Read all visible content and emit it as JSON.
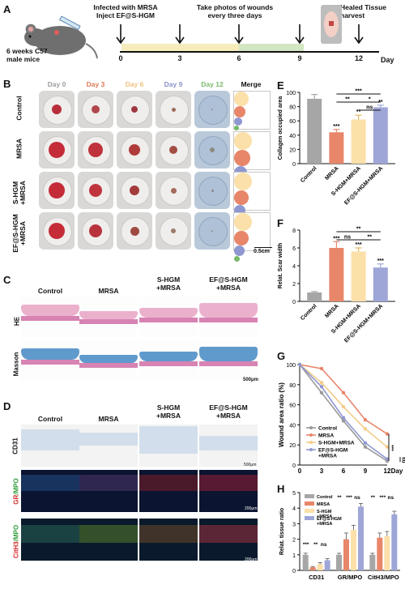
{
  "panels": {
    "A": "A",
    "B": "B",
    "C": "C",
    "D": "D",
    "E": "E",
    "F": "F",
    "G": "G",
    "H": "H"
  },
  "timeline": {
    "mice": "6 weeks C57\nmale mice",
    "event_infect": "Infected with MRSA\nInject EF@S-HGM",
    "event_photo": "Take photos of wounds\nevery three days",
    "event_harvest": "Healed Tissue\nharvest",
    "ticks": [
      "0",
      "3",
      "6",
      "9",
      "12"
    ],
    "axis_unit": "Day"
  },
  "panel_b": {
    "days": [
      "Day 0",
      "Day 3",
      "Day 6",
      "Day 9",
      "Day 12",
      "Merge"
    ],
    "day_colors": [
      "#9e9e9e",
      "#e07b55",
      "#f0c27c",
      "#8a93c9",
      "#79b96a",
      "#111111"
    ],
    "groups": [
      "Control",
      "MRSA",
      "S-HGM\n+MRSA",
      "EF@S-HGM\n+MRSA"
    ],
    "scale": "0.5cm"
  },
  "panel_c": {
    "columns": [
      "Control",
      "MRSA",
      "S-HGM\n+MRSA",
      "EF@S-HGM\n+MRSA"
    ],
    "rows": [
      "HE",
      "Masson"
    ],
    "scale": "500μm"
  },
  "panel_d": {
    "columns": [
      "Control",
      "MRSA",
      "S-HGM\n+MRSA",
      "EF@S-HGM\n+MRSA"
    ],
    "row1": "CD31",
    "row2_a": "GR",
    "row2_b": "/MPO",
    "row3_a": "CitH3",
    "row3_b": "/MPO",
    "scale1": "500μm",
    "scale2": "200μm"
  },
  "chart_data": [
    {
      "id": "E",
      "type": "bar",
      "ylabel": "Collagen occupied area",
      "categories": [
        "Control",
        "MRSA",
        "S-HGM+MRSA",
        "EF@S-HGM+MRSA"
      ],
      "values": [
        91,
        44,
        62,
        79
      ],
      "errors": [
        6,
        4,
        6,
        3
      ],
      "colors": [
        "#a6a6a6",
        "#e8866a",
        "#fbe0a9",
        "#9ea6d8"
      ],
      "ylim": [
        0,
        100
      ],
      "yticks": [
        "0",
        "20",
        "40",
        "60",
        "80",
        "100"
      ],
      "labels": [
        "",
        "***",
        "**",
        "**"
      ],
      "brackets": [
        {
          "from": 1,
          "to": 3,
          "level": 0,
          "text": "***"
        },
        {
          "from": 1,
          "to": 2,
          "level": 1,
          "text": "**"
        },
        {
          "from": 2,
          "to": 3,
          "level": 1,
          "text": "*"
        },
        {
          "from": 2,
          "to": 3,
          "level": 2,
          "text": "ns"
        }
      ]
    },
    {
      "id": "F",
      "type": "bar",
      "ylabel": "Relat. Scar width",
      "categories": [
        "Control",
        "MRSA",
        "S-HGM+MRSA",
        "EF@S-HGM+MRSA"
      ],
      "values": [
        1.0,
        6.0,
        5.6,
        3.8
      ],
      "errors": [
        0.1,
        0.7,
        0.4,
        0.4
      ],
      "colors": [
        "#a6a6a6",
        "#e8866a",
        "#fbe0a9",
        "#9ea6d8"
      ],
      "ylim": [
        0,
        8
      ],
      "yticks": [
        "0",
        "2",
        "4",
        "6",
        "8"
      ],
      "labels": [
        "",
        "***",
        "***",
        "***"
      ],
      "brackets": [
        {
          "from": 1,
          "to": 3,
          "level": 0,
          "text": "**"
        },
        {
          "from": 1,
          "to": 2,
          "level": 1,
          "text": "ns"
        },
        {
          "from": 2,
          "to": 3,
          "level": 1,
          "text": "**"
        }
      ]
    },
    {
      "id": "G",
      "type": "line",
      "ylabel": "Wound area ratio (%)",
      "xlabel": "Day",
      "x": [
        0,
        3,
        6,
        9,
        12
      ],
      "ylim": [
        0,
        100
      ],
      "yticks": [
        "0",
        "20",
        "40",
        "60",
        "80",
        "100"
      ],
      "xticks": [
        "0",
        "3",
        "6",
        "9",
        "12"
      ],
      "series": [
        {
          "name": "Control",
          "color": "#9a9a9a",
          "values": [
            100,
            72,
            44,
            18,
            4
          ]
        },
        {
          "name": "MRSA",
          "color": "#e8866a",
          "values": [
            100,
            96,
            72,
            45,
            31
          ]
        },
        {
          "name": "S-HGM+MRSA",
          "color": "#f3cc88",
          "values": [
            100,
            82,
            58,
            36,
            18
          ]
        },
        {
          "name": "EF@S-HGM\n+MRSA",
          "color": "#8f97d0",
          "values": [
            100,
            78,
            47,
            22,
            6
          ]
        }
      ],
      "sig": [
        "***",
        "ns"
      ]
    },
    {
      "id": "H",
      "type": "bar",
      "ylabel": "Relat. tissue ratio",
      "categories": [
        "CD31",
        "GR/MPO",
        "CitH3/MPO"
      ],
      "ylim": [
        0,
        5
      ],
      "yticks": [
        "0",
        "1",
        "2",
        "3",
        "4",
        "5"
      ],
      "series": [
        {
          "name": "Control",
          "color": "#a6a6a6",
          "values": [
            1.0,
            1.0,
            1.0
          ],
          "errors": [
            0.1,
            0.1,
            0.1
          ]
        },
        {
          "name": "MRSA",
          "color": "#e8866a",
          "values": [
            0.2,
            2.0,
            2.1
          ],
          "errors": [
            0.05,
            0.4,
            0.3
          ]
        },
        {
          "name": "S-HGM\n+MRSA",
          "color": "#fbe0a9",
          "values": [
            0.4,
            2.6,
            2.2
          ],
          "errors": [
            0.1,
            0.3,
            0.3
          ]
        },
        {
          "name": "EF@S-HGM\n+MRSA",
          "color": "#9ea6d8",
          "values": [
            0.65,
            4.1,
            3.6
          ],
          "errors": [
            0.1,
            0.2,
            0.2
          ]
        }
      ],
      "sig": [
        [
          "***",
          "**",
          "ns"
        ],
        [
          "**",
          "***",
          "ns"
        ],
        [
          "**",
          "***",
          "ns"
        ]
      ]
    }
  ]
}
